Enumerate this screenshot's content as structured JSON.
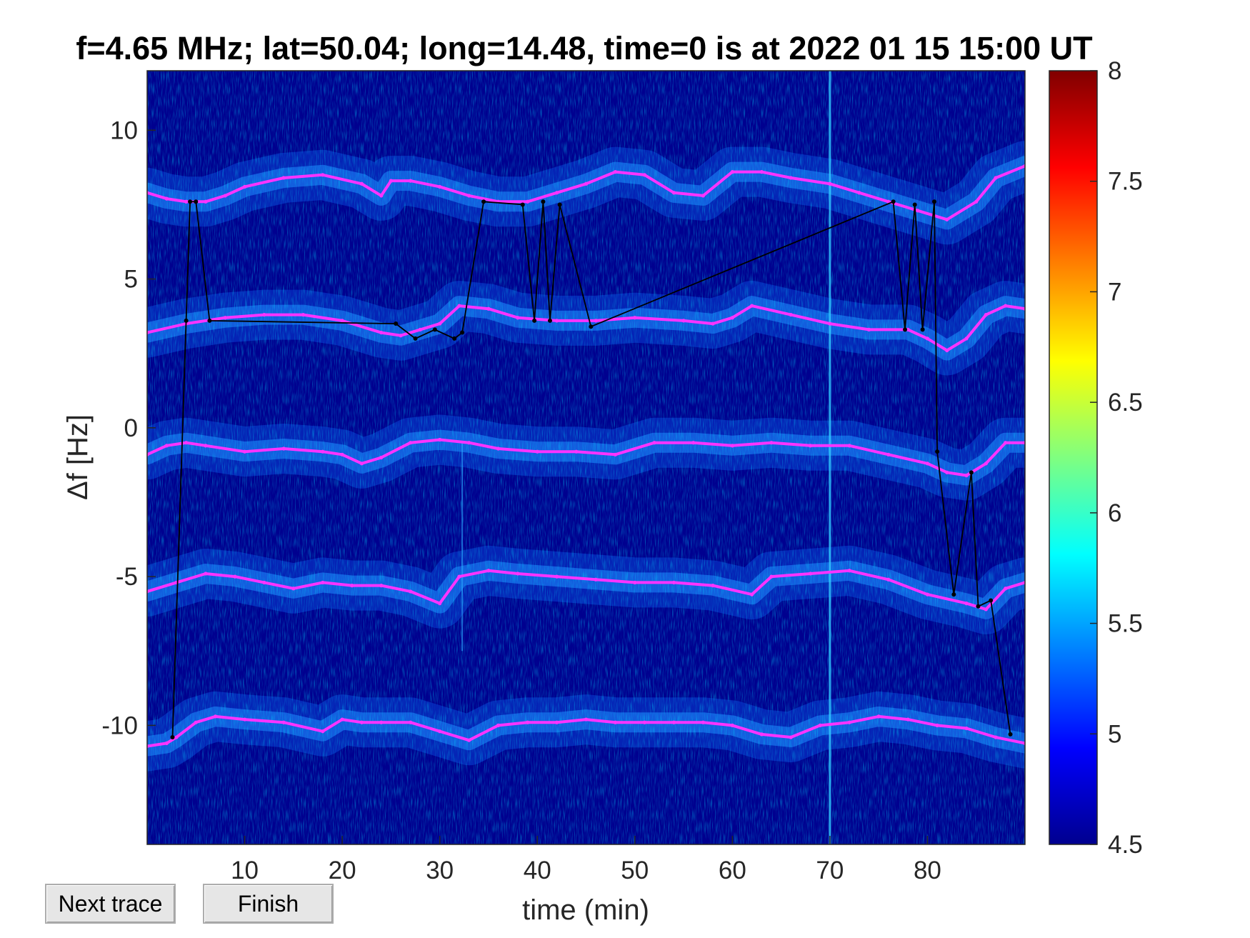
{
  "buttons": {
    "next_trace": "Next trace",
    "finish": "Finish"
  },
  "chart_data": {
    "type": "heatmap",
    "title": "f=4.65 MHz;  lat=50.04; long=14.48, time=0 is at 2022 01 15 15:00 UT",
    "xlabel": "time (min)",
    "ylabel": "Δf [Hz]",
    "xlim": [
      0,
      90
    ],
    "ylim": [
      -14,
      12
    ],
    "xticks": [
      10,
      20,
      30,
      40,
      50,
      60,
      70,
      80
    ],
    "yticks": [
      10,
      5,
      0,
      -5,
      -10
    ],
    "colorbar": {
      "range": [
        4.5,
        8
      ],
      "ticks": [
        "8",
        "7.5",
        "7",
        "6.5",
        "6",
        "5.5",
        "5",
        "4.5"
      ],
      "colormap": "jet"
    },
    "colors": {
      "background": "#00008f",
      "trace": "#ff33ff",
      "selection": "#000000"
    },
    "series": [
      {
        "x": [
          0,
          2,
          4,
          6,
          8,
          10,
          14,
          18,
          22,
          24,
          25,
          27,
          30,
          33,
          36,
          39,
          42,
          45,
          48,
          51,
          54,
          57,
          60,
          63,
          66,
          70,
          73,
          76,
          79,
          82,
          85,
          87,
          90
        ],
        "y": [
          7.9,
          7.7,
          7.6,
          7.6,
          7.8,
          8.1,
          8.4,
          8.5,
          8.2,
          7.8,
          8.3,
          8.3,
          8.1,
          7.8,
          7.6,
          7.6,
          7.9,
          8.2,
          8.6,
          8.5,
          7.9,
          7.8,
          8.6,
          8.6,
          8.4,
          8.2,
          7.9,
          7.6,
          7.3,
          7.0,
          7.6,
          8.4,
          8.8
        ]
      },
      {
        "x": [
          0,
          4,
          8,
          12,
          16,
          20,
          24,
          26,
          28,
          30,
          32,
          35,
          38,
          42,
          46,
          50,
          55,
          58,
          60,
          62,
          66,
          70,
          74,
          78,
          80,
          82,
          84,
          86,
          88,
          90
        ],
        "y": [
          3.2,
          3.5,
          3.7,
          3.8,
          3.8,
          3.6,
          3.2,
          3.1,
          3.3,
          3.5,
          4.1,
          4.0,
          3.7,
          3.6,
          3.6,
          3.7,
          3.6,
          3.5,
          3.7,
          4.1,
          3.8,
          3.5,
          3.3,
          3.3,
          3.0,
          2.6,
          3.0,
          3.8,
          4.1,
          4.0
        ]
      },
      {
        "x": [
          0,
          2,
          4,
          6,
          10,
          14,
          18,
          20,
          22,
          24,
          27,
          30,
          33,
          36,
          40,
          44,
          48,
          52,
          56,
          60,
          64,
          68,
          72,
          76,
          80,
          82,
          84,
          86,
          88,
          90
        ],
        "y": [
          -0.9,
          -0.6,
          -0.5,
          -0.6,
          -0.8,
          -0.7,
          -0.8,
          -0.9,
          -1.2,
          -1.0,
          -0.5,
          -0.4,
          -0.5,
          -0.7,
          -0.8,
          -0.8,
          -0.9,
          -0.5,
          -0.5,
          -0.6,
          -0.5,
          -0.6,
          -0.6,
          -0.9,
          -1.2,
          -1.5,
          -1.6,
          -1.2,
          -0.5,
          -0.5
        ]
      },
      {
        "x": [
          0,
          3,
          6,
          9,
          12,
          15,
          18,
          21,
          24,
          27,
          30,
          32,
          35,
          38,
          42,
          46,
          50,
          54,
          58,
          62,
          64,
          68,
          72,
          76,
          80,
          84,
          86,
          88,
          90
        ],
        "y": [
          -5.5,
          -5.2,
          -4.9,
          -5.0,
          -5.2,
          -5.4,
          -5.2,
          -5.3,
          -5.3,
          -5.5,
          -5.9,
          -5.0,
          -4.8,
          -4.9,
          -5.0,
          -5.1,
          -5.2,
          -5.2,
          -5.3,
          -5.6,
          -5.0,
          -4.9,
          -4.8,
          -5.1,
          -5.6,
          -5.9,
          -6.1,
          -5.4,
          -5.2
        ]
      },
      {
        "x": [
          0,
          2,
          3,
          5,
          7,
          10,
          14,
          18,
          20,
          22,
          24,
          27,
          30,
          33,
          36,
          39,
          42,
          45,
          48,
          51,
          54,
          57,
          60,
          63,
          66,
          69,
          72,
          75,
          78,
          81,
          84,
          87,
          90
        ],
        "y": [
          -10.7,
          -10.6,
          -10.4,
          -9.9,
          -9.7,
          -9.8,
          -9.9,
          -10.2,
          -9.8,
          -9.9,
          -9.9,
          -9.9,
          -10.2,
          -10.5,
          -10.0,
          -9.9,
          -9.9,
          -9.8,
          -9.9,
          -9.9,
          -9.9,
          -9.9,
          -10.0,
          -10.3,
          -10.4,
          -10.0,
          -9.9,
          -9.7,
          -9.8,
          -10.0,
          -10.1,
          -10.4,
          -10.6
        ]
      }
    ],
    "selection_trace": {
      "x": [
        2.6,
        4.0,
        4.4,
        5.0,
        6.4,
        25.5,
        27.5,
        29.5,
        31.5,
        32.3,
        34.5,
        38.5,
        39.7,
        40.6,
        41.3,
        42.3,
        45.5,
        76.5,
        77.7,
        78.7,
        79.5,
        80.7,
        81.0,
        82.7,
        84.5,
        85.2,
        86.5,
        88.5
      ],
      "y": [
        -10.4,
        3.6,
        7.6,
        7.6,
        3.6,
        3.5,
        3.0,
        3.3,
        3.0,
        3.2,
        7.6,
        7.5,
        3.6,
        7.6,
        3.6,
        7.5,
        3.4,
        7.6,
        3.3,
        7.5,
        3.3,
        7.6,
        -0.8,
        -5.6,
        -1.5,
        -6.0,
        -5.8,
        -10.3
      ]
    }
  }
}
